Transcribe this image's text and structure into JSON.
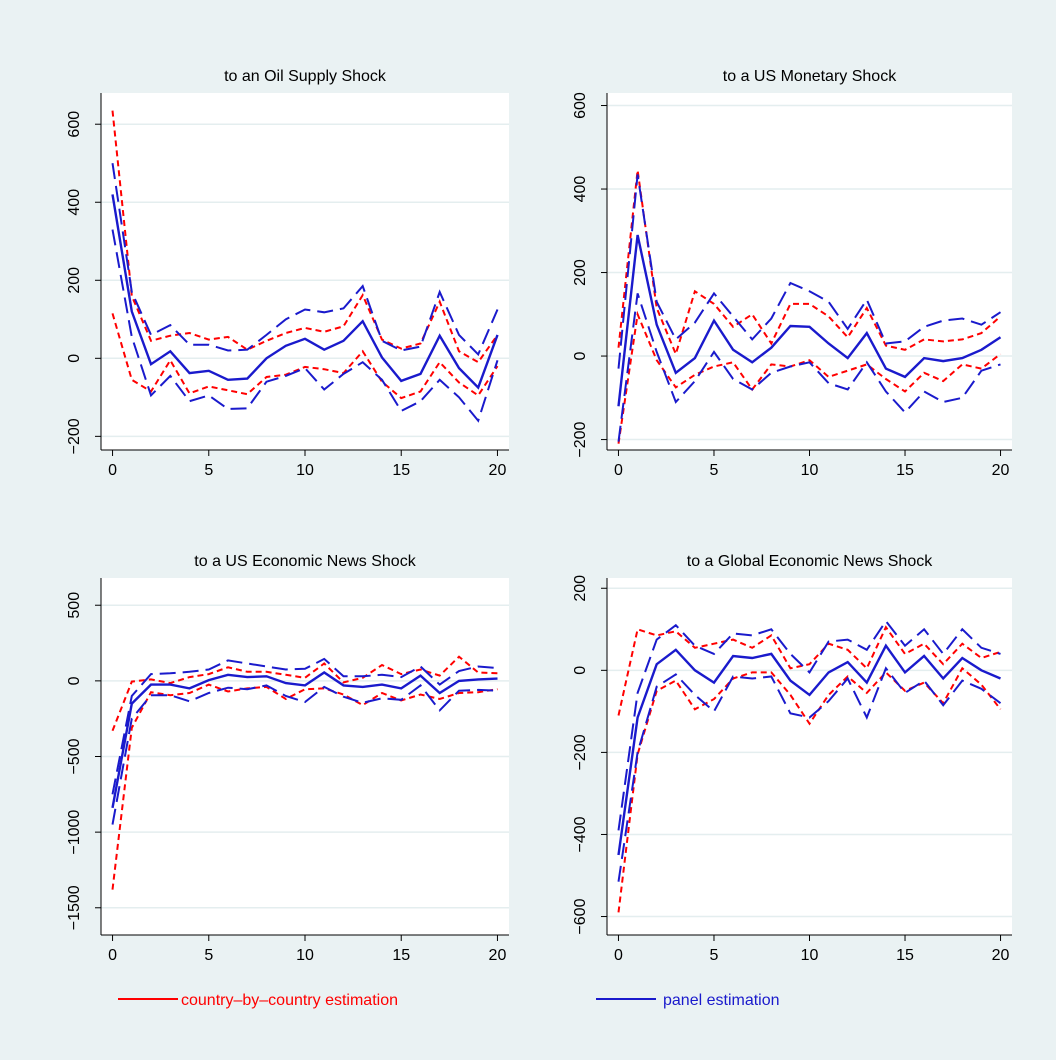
{
  "legend": {
    "country_label": "country–by–country estimation",
    "panel_label": "panel estimation"
  },
  "colors": {
    "background": "#eaf2f3",
    "plot_bg": "#ffffff",
    "grid": "#e4eeef",
    "country": "#ff0000",
    "panel": "#1a1acc"
  },
  "chart_data": [
    {
      "type": "line",
      "title": "to an Oil Supply Shock",
      "xticks": [
        0,
        5,
        10,
        15,
        20
      ],
      "yticks": [
        -200,
        0,
        200,
        400,
        600
      ],
      "ytick_labels": [
        "−200",
        "0",
        "200",
        "400",
        "600"
      ],
      "xlim": [
        -0.6,
        20.6
      ],
      "ylim": [
        -235,
        680
      ],
      "grid": true,
      "x": [
        0,
        1,
        2,
        3,
        4,
        5,
        6,
        7,
        8,
        9,
        10,
        11,
        12,
        13,
        14,
        15,
        16,
        17,
        18,
        19,
        20
      ],
      "series": [
        {
          "group": "panel",
          "role": "estimate",
          "values": [
            420,
            120,
            -15,
            18,
            -38,
            -32,
            -55,
            -52,
            0,
            32,
            50,
            22,
            45,
            95,
            2,
            -58,
            -40,
            58,
            -25,
            -75,
            60
          ]
        },
        {
          "group": "panel",
          "role": "upper",
          "values": [
            500,
            170,
            60,
            85,
            35,
            35,
            20,
            22,
            60,
            100,
            125,
            118,
            128,
            185,
            45,
            20,
            30,
            170,
            60,
            10,
            125
          ]
        },
        {
          "group": "panel",
          "role": "lower",
          "values": [
            330,
            55,
            -95,
            -45,
            -110,
            -95,
            -130,
            -128,
            -60,
            -45,
            -25,
            -80,
            -40,
            -10,
            -55,
            -135,
            -110,
            -55,
            -100,
            -160,
            -5
          ]
        },
        {
          "group": "country",
          "role": "upper",
          "values": [
            635,
            160,
            45,
            58,
            65,
            48,
            55,
            22,
            45,
            65,
            78,
            68,
            82,
            162,
            48,
            25,
            38,
            145,
            18,
            -10,
            60
          ]
        },
        {
          "group": "country",
          "role": "lower",
          "values": [
            115,
            -55,
            -85,
            -5,
            -90,
            -72,
            -82,
            -92,
            -48,
            -42,
            -22,
            -28,
            -38,
            18,
            -60,
            -102,
            -85,
            -10,
            -62,
            -95,
            -20
          ]
        }
      ]
    },
    {
      "type": "line",
      "title": "to a US Monetary Shock",
      "xticks": [
        0,
        5,
        10,
        15,
        20
      ],
      "yticks": [
        -200,
        0,
        200,
        400,
        600
      ],
      "ytick_labels": [
        "−200",
        "0",
        "200",
        "400",
        "600"
      ],
      "xlim": [
        -0.6,
        20.6
      ],
      "ylim": [
        -225,
        630
      ],
      "grid": true,
      "x": [
        0,
        1,
        2,
        3,
        4,
        5,
        6,
        7,
        8,
        9,
        10,
        11,
        12,
        13,
        14,
        15,
        16,
        17,
        18,
        19,
        20
      ],
      "series": [
        {
          "group": "panel",
          "role": "estimate",
          "values": [
            -120,
            290,
            75,
            -40,
            -5,
            85,
            15,
            -15,
            20,
            72,
            70,
            30,
            -5,
            55,
            -30,
            -50,
            -5,
            -12,
            -5,
            15,
            45
          ]
        },
        {
          "group": "panel",
          "role": "upper",
          "values": [
            -30,
            435,
            130,
            40,
            80,
            150,
            95,
            40,
            90,
            175,
            155,
            130,
            65,
            135,
            30,
            35,
            70,
            85,
            90,
            75,
            105
          ]
        },
        {
          "group": "panel",
          "role": "lower",
          "values": [
            -205,
            150,
            10,
            -110,
            -60,
            10,
            -55,
            -80,
            -40,
            -25,
            -15,
            -65,
            -80,
            -15,
            -85,
            -135,
            -85,
            -110,
            -100,
            -35,
            -20
          ]
        },
        {
          "group": "country",
          "role": "upper",
          "values": [
            20,
            445,
            115,
            5,
            155,
            125,
            70,
            100,
            30,
            125,
            125,
            95,
            45,
            115,
            25,
            15,
            40,
            35,
            40,
            55,
            95
          ]
        },
        {
          "group": "country",
          "role": "lower",
          "values": [
            -210,
            100,
            -10,
            -75,
            -45,
            -25,
            -15,
            -80,
            -20,
            -25,
            -10,
            -50,
            -35,
            -20,
            -55,
            -85,
            -40,
            -60,
            -20,
            -30,
            5
          ]
        }
      ]
    },
    {
      "type": "line",
      "title": "to a US Economic News Shock",
      "xticks": [
        0,
        5,
        10,
        15,
        20
      ],
      "yticks": [
        -1500,
        -1000,
        -500,
        0,
        500
      ],
      "ytick_labels": [
        "−1500",
        "−1000",
        "−500",
        "0",
        "500"
      ],
      "xlim": [
        -0.6,
        20.6
      ],
      "ylim": [
        -1680,
        680
      ],
      "grid": true,
      "x": [
        0,
        1,
        2,
        3,
        4,
        5,
        6,
        7,
        8,
        9,
        10,
        11,
        12,
        13,
        14,
        15,
        16,
        17,
        18,
        19,
        20
      ],
      "series": [
        {
          "group": "panel",
          "role": "estimate",
          "values": [
            -840,
            -150,
            -25,
            -25,
            -50,
            5,
            40,
            25,
            30,
            -15,
            -30,
            55,
            -30,
            -40,
            -25,
            -50,
            35,
            -80,
            0,
            10,
            15
          ]
        },
        {
          "group": "panel",
          "role": "upper",
          "values": [
            -750,
            -100,
            45,
            50,
            60,
            75,
            135,
            115,
            95,
            75,
            80,
            145,
            30,
            30,
            40,
            25,
            95,
            -25,
            65,
            95,
            85
          ]
        },
        {
          "group": "panel",
          "role": "lower",
          "values": [
            -950,
            -250,
            -95,
            -95,
            -135,
            -80,
            -45,
            -55,
            -30,
            -100,
            -140,
            -40,
            -105,
            -145,
            -115,
            -125,
            -30,
            -195,
            -65,
            -60,
            -65
          ]
        },
        {
          "group": "country",
          "role": "upper",
          "values": [
            -330,
            -5,
            10,
            -15,
            25,
            45,
            90,
            60,
            60,
            40,
            20,
            115,
            -10,
            20,
            105,
            45,
            75,
            35,
            160,
            55,
            50
          ]
        },
        {
          "group": "country",
          "role": "lower",
          "values": [
            -1380,
            -310,
            -75,
            -95,
            -80,
            -25,
            -70,
            -50,
            -40,
            -120,
            -55,
            -50,
            -90,
            -160,
            -80,
            -130,
            -90,
            -120,
            -80,
            -75,
            -55
          ]
        }
      ]
    },
    {
      "type": "line",
      "title": "to a Global Economic News Shock",
      "xticks": [
        0,
        5,
        10,
        15,
        20
      ],
      "yticks": [
        -600,
        -400,
        -200,
        0,
        200
      ],
      "ytick_labels": [
        "−600",
        "−400",
        "−200",
        "0",
        "200"
      ],
      "xlim": [
        -0.6,
        20.6
      ],
      "ylim": [
        -645,
        225
      ],
      "grid": true,
      "x": [
        0,
        1,
        2,
        3,
        4,
        5,
        6,
        7,
        8,
        9,
        10,
        11,
        12,
        13,
        14,
        15,
        16,
        17,
        18,
        19,
        20
      ],
      "series": [
        {
          "group": "panel",
          "role": "estimate",
          "values": [
            -450,
            -115,
            15,
            50,
            0,
            -30,
            35,
            30,
            40,
            -25,
            -60,
            -5,
            20,
            -30,
            60,
            -5,
            35,
            -20,
            30,
            0,
            -20
          ]
        },
        {
          "group": "panel",
          "role": "upper",
          "values": [
            -390,
            -55,
            75,
            110,
            60,
            40,
            90,
            85,
            100,
            40,
            -5,
            70,
            75,
            50,
            120,
            60,
            100,
            40,
            100,
            55,
            40
          ]
        },
        {
          "group": "panel",
          "role": "lower",
          "values": [
            -515,
            -200,
            -40,
            -10,
            -60,
            -100,
            -15,
            -20,
            -15,
            -105,
            -115,
            -75,
            -20,
            -115,
            5,
            -55,
            -25,
            -85,
            -25,
            -45,
            -80
          ]
        },
        {
          "group": "country",
          "role": "upper",
          "values": [
            -110,
            100,
            85,
            95,
            55,
            65,
            75,
            55,
            85,
            5,
            15,
            65,
            50,
            5,
            105,
            40,
            65,
            15,
            65,
            30,
            45
          ]
        },
        {
          "group": "country",
          "role": "lower",
          "values": [
            -590,
            -205,
            -50,
            -25,
            -95,
            -70,
            -20,
            -5,
            -5,
            -60,
            -130,
            -60,
            -15,
            -55,
            -5,
            -50,
            -30,
            -80,
            5,
            -35,
            -95
          ]
        }
      ]
    }
  ]
}
